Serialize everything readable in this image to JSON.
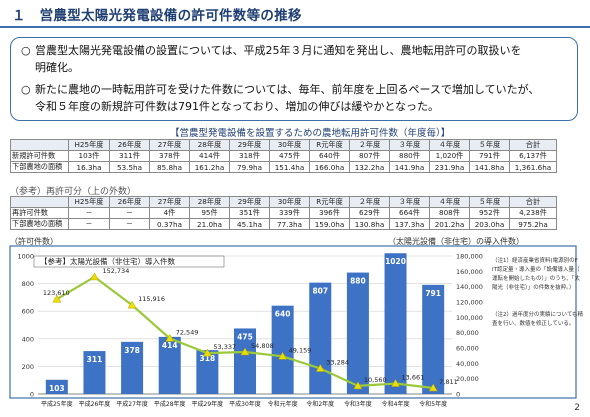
{
  "header": {
    "title": "１　営農型太陽光発電設備の許可件数等の推移"
  },
  "bullets": [
    {
      "line1": "営農型太陽光発電設備の設置については、平成25年３月に通知を発出し、農地転用許可の取扱いを",
      "line2": "明確化。"
    },
    {
      "line1": "新たに農地の一時転用許可を受けた件数については、毎年、前年度を上回るペースで増加していたが、",
      "line2": "令和５年度の新規許可件数は791件となっており、増加の伸びは緩やかとなった。"
    }
  ],
  "table1": {
    "caption": "【営農型発電設備を設置するための農地転用許可件数（年度毎）】",
    "headers": [
      "",
      "H25年度",
      "26年度",
      "27年度",
      "28年度",
      "29年度",
      "30年度",
      "R元年度",
      "２年度",
      "３年度",
      "４年度",
      "５年度",
      "合計"
    ],
    "rows": [
      {
        "label": "新規許可件数",
        "cells": [
          "103件",
          "311件",
          "378件",
          "414件",
          "318件",
          "475件",
          "640件",
          "807件",
          "880件",
          "1,020件",
          "791件",
          "6,137件"
        ]
      },
      {
        "label": "下部農地の面積",
        "cells": [
          "16.3ha",
          "53.5ha",
          "85.8ha",
          "161.2ha",
          "79.9ha",
          "151.4ha",
          "166.0ha",
          "132.2ha",
          "141.9ha",
          "231.9ha",
          "141.8ha",
          "1,361.6ha"
        ]
      }
    ]
  },
  "table2": {
    "caption": "（参考）再許可分（上の外数）",
    "headers": [
      "",
      "H25年度",
      "26年度",
      "27年度",
      "28年度",
      "29年度",
      "30年度",
      "R元年度",
      "２年度",
      "３年度",
      "４年度",
      "５年度",
      "合計"
    ],
    "rows": [
      {
        "label": "再許可件数",
        "cells": [
          "－",
          "－",
          "4件",
          "95件",
          "351件",
          "339件",
          "396件",
          "629件",
          "664件",
          "808件",
          "952件",
          "4,238件"
        ]
      },
      {
        "label": "下部農地の面積",
        "cells": [
          "－",
          "－",
          "0.37ha",
          "21.0ha",
          "45.1ha",
          "77.3ha",
          "159.0ha",
          "130.8ha",
          "137.3ha",
          "201.2ha",
          "203.0ha",
          "975.2ha"
        ]
      }
    ]
  },
  "chart_data": {
    "type": "bar",
    "left_axis_label": "（許可件数）",
    "right_axis_label": "（太陽光設備（非住宅）の導入件数）",
    "categories": [
      "平成25年度",
      "平成26年度",
      "平成27年度",
      "平成28年度",
      "平成29年度",
      "平成30年度",
      "令和元年度",
      "令和2年度",
      "令和3年度",
      "令和4年度",
      "令和5年度"
    ],
    "ylim_left": [
      0,
      1000
    ],
    "yticks_left": [
      "0",
      "200",
      "400",
      "600",
      "800",
      "1000"
    ],
    "ylim_right": [
      0,
      180000
    ],
    "yticks_right": [
      "0",
      "20,000",
      "40,000",
      "60,000",
      "80,000",
      "100,000",
      "120,000",
      "140,000",
      "160,000",
      "180,000"
    ],
    "series": [
      {
        "values": [
          103,
          311,
          378,
          414,
          318,
          475,
          640,
          807,
          880,
          1020,
          791
        ],
        "labels": [
          "103",
          "311",
          "378",
          "414",
          "318",
          "475",
          "640",
          "807",
          "880",
          "1020",
          "791"
        ],
        "color": "#3e72c4",
        "axis": "left"
      },
      {
        "name": "【参考】太陽光設備（非住宅）導入件数",
        "values": [
          123610,
          152734,
          115916,
          72549,
          53337,
          54808,
          49159,
          33284,
          10560,
          13661,
          7811
        ],
        "labels": [
          "123,610",
          "152,734",
          "115,916",
          "72,549",
          "53,337",
          "54,808",
          "49,159",
          "33,284",
          "10,560",
          "13,661",
          "7,811"
        ],
        "color": "#9bc93a",
        "marker": "#eedd00",
        "axis": "right"
      }
    ],
    "note1": "（注1）経済産業省資料(電源別のFIT認定量・導入量の「設備導入量（運転を開始したもの）」のうち、「太陽光（非住宅）」の件数を抜粋。）",
    "note2": "（注2）過年度分の実績についても精査を行い、数値を修正している。",
    "grid": true
  },
  "page_number": "2",
  "colors": {
    "accent": "#3f6fa8",
    "bar": "#3e72c4",
    "line": "#9bc93a"
  }
}
